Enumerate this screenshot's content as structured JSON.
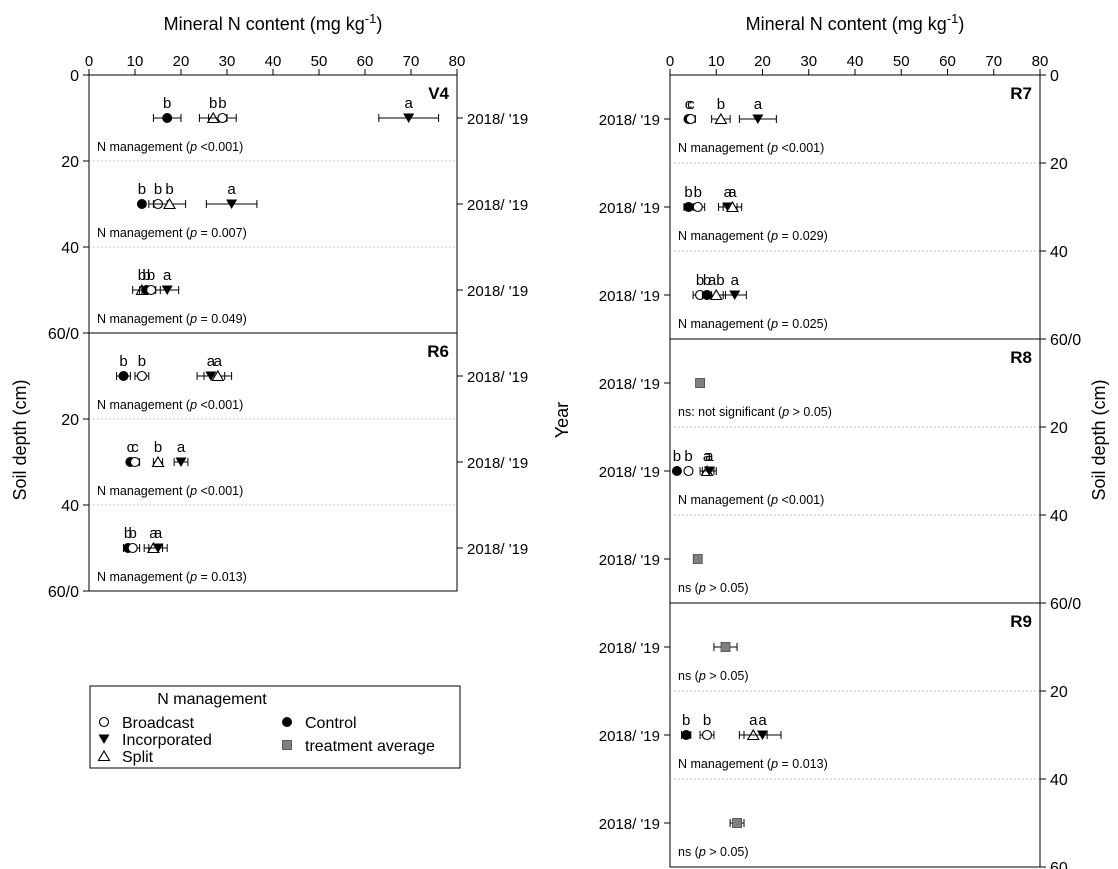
{
  "chart_data": {
    "type": "scatter",
    "x_axis_label": "Mineral N content (mg kg",
    "x_axis_label_sup": "-1",
    "x_axis_label_end": ")",
    "x_ticks": [
      "0",
      "10",
      "20",
      "30",
      "40",
      "50",
      "60",
      "70",
      "80"
    ],
    "xlim": [
      0,
      80
    ],
    "left_ylabel": "Soil depth (cm)",
    "right_ylabel": "Soil depth (cm)",
    "center_ylabel": "Year",
    "year_label": "2018/ '19",
    "left_y_ticks": [
      "0",
      "20",
      "40",
      "60/0",
      "20",
      "40",
      "60/0"
    ],
    "right_y_ticks": [
      "0",
      "20",
      "40",
      "60/0",
      "20",
      "40",
      "60/0",
      "20",
      "40",
      "60"
    ],
    "series_legend": {
      "title": "N management",
      "entries": [
        {
          "key": "broadcast",
          "label": "Broadcast",
          "marker": "open-circle"
        },
        {
          "key": "incorporated",
          "label": "Incorporated",
          "marker": "filled-triangle-down"
        },
        {
          "key": "split",
          "label": "Split",
          "marker": "open-triangle-up"
        },
        {
          "key": "control",
          "label": "Control",
          "marker": "filled-circle"
        },
        {
          "key": "average",
          "label": "treatment average",
          "marker": "grey-square"
        }
      ]
    },
    "panels": [
      {
        "id": "V4",
        "label": "V4",
        "column": "left",
        "depths": [
          {
            "depth": 10,
            "stat": "N management (",
            "p_text": " <0.001)",
            "points": [
              {
                "series": "control",
                "x": 17,
                "err": 3,
                "letter": "b"
              },
              {
                "series": "split",
                "x": 27,
                "err": 3,
                "letter": "b"
              },
              {
                "series": "broadcast",
                "x": 29,
                "err": 3,
                "letter": "b"
              },
              {
                "series": "incorporated",
                "x": 69.5,
                "err": 6.5,
                "letter": "a"
              }
            ]
          },
          {
            "depth": 30,
            "stat": "N management (",
            "p_text": " = 0.007)",
            "points": [
              {
                "series": "control",
                "x": 11.5,
                "err": 0,
                "letter": "b"
              },
              {
                "series": "broadcast",
                "x": 15,
                "err": 2,
                "letter": "b"
              },
              {
                "series": "split",
                "x": 17.5,
                "err": 3.5,
                "letter": "b"
              },
              {
                "series": "incorporated",
                "x": 31,
                "err": 5.5,
                "letter": "a"
              }
            ]
          },
          {
            "depth": 50,
            "stat": "N management (",
            "p_text": " = 0.049)",
            "points": [
              {
                "series": "split",
                "x": 11.5,
                "err": 2,
                "letter": "b"
              },
              {
                "series": "control",
                "x": 12.5,
                "err": 1.5,
                "letter": "b"
              },
              {
                "series": "broadcast",
                "x": 13.5,
                "err": 2,
                "letter": "b"
              },
              {
                "series": "incorporated",
                "x": 17,
                "err": 2.5,
                "letter": "a"
              }
            ]
          }
        ]
      },
      {
        "id": "R6",
        "label": "R6",
        "column": "left",
        "depths": [
          {
            "depth": 10,
            "stat": "N management (",
            "p_text": " <0.001)",
            "points": [
              {
                "series": "control",
                "x": 7.5,
                "err": 1.5,
                "letter": "b"
              },
              {
                "series": "broadcast",
                "x": 11.5,
                "err": 1.5,
                "letter": "b"
              },
              {
                "series": "incorporated",
                "x": 26.5,
                "err": 3,
                "letter": "a"
              },
              {
                "series": "split",
                "x": 28,
                "err": 3,
                "letter": "a"
              }
            ]
          },
          {
            "depth": 30,
            "stat": "N management (",
            "p_text": " <0.001)",
            "points": [
              {
                "series": "control",
                "x": 9,
                "err": 0,
                "letter": "c"
              },
              {
                "series": "broadcast",
                "x": 10,
                "err": 1,
                "letter": "c"
              },
              {
                "series": "split",
                "x": 15,
                "err": 1,
                "letter": "b"
              },
              {
                "series": "incorporated",
                "x": 20,
                "err": 1.5,
                "letter": "a"
              }
            ]
          },
          {
            "depth": 50,
            "stat": "N management (",
            "p_text": " = 0.013)",
            "points": [
              {
                "series": "control",
                "x": 8.5,
                "err": 1,
                "letter": "b"
              },
              {
                "series": "broadcast",
                "x": 9.5,
                "err": 1.5,
                "letter": "b"
              },
              {
                "series": "split",
                "x": 14,
                "err": 2,
                "letter": "a"
              },
              {
                "series": "incorporated",
                "x": 15,
                "err": 2,
                "letter": "a"
              }
            ]
          }
        ]
      },
      {
        "id": "R7",
        "label": "R7",
        "column": "right",
        "depths": [
          {
            "depth": 10,
            "stat": "N management (",
            "p_text": " <0.001)",
            "points": [
              {
                "series": "control",
                "x": 4,
                "err": 0.5,
                "letter": "c"
              },
              {
                "series": "broadcast",
                "x": 4.5,
                "err": 1,
                "letter": "c"
              },
              {
                "series": "split",
                "x": 11,
                "err": 2,
                "letter": "b"
              },
              {
                "series": "incorporated",
                "x": 19,
                "err": 4,
                "letter": "a"
              }
            ]
          },
          {
            "depth": 30,
            "stat": "N management (",
            "p_text": " = 0.029)",
            "points": [
              {
                "series": "control",
                "x": 4,
                "err": 1,
                "letter": "b"
              },
              {
                "series": "broadcast",
                "x": 6,
                "err": 1.5,
                "letter": "b"
              },
              {
                "series": "incorporated",
                "x": 12.5,
                "err": 2,
                "letter": "a"
              },
              {
                "series": "split",
                "x": 13.5,
                "err": 2,
                "letter": "a"
              }
            ]
          },
          {
            "depth": 50,
            "stat": "N management (",
            "p_text": " = 0.025)",
            "points": [
              {
                "series": "broadcast",
                "x": 6.5,
                "err": 1.5,
                "letter": "b"
              },
              {
                "series": "control",
                "x": 8,
                "err": 1,
                "letter": "b"
              },
              {
                "series": "split",
                "x": 10,
                "err": 2,
                "letter": "ab"
              },
              {
                "series": "incorporated",
                "x": 14,
                "err": 2.5,
                "letter": "a"
              }
            ]
          }
        ]
      },
      {
        "id": "R8",
        "label": "R8",
        "column": "right",
        "depths": [
          {
            "depth": 10,
            "stat": "ns: not significant (",
            "p_text": " > 0.05)",
            "points": [
              {
                "series": "average",
                "x": 6.5,
                "err": 0,
                "letter": ""
              }
            ]
          },
          {
            "depth": 30,
            "stat": "N management (",
            "p_text": " <0.001)",
            "points": [
              {
                "series": "control",
                "x": 1.5,
                "err": 0,
                "letter": "b"
              },
              {
                "series": "broadcast",
                "x": 4,
                "err": 0.5,
                "letter": "b"
              },
              {
                "series": "split",
                "x": 8,
                "err": 1.5,
                "letter": "a"
              },
              {
                "series": "incorporated",
                "x": 8.5,
                "err": 1.5,
                "letter": "a"
              }
            ]
          },
          {
            "depth": 50,
            "stat": "ns (",
            "p_text": " > 0.05)",
            "points": [
              {
                "series": "average",
                "x": 6,
                "err": 0,
                "letter": ""
              }
            ]
          }
        ]
      },
      {
        "id": "R9",
        "label": "R9",
        "column": "right",
        "depths": [
          {
            "depth": 10,
            "stat": "ns (",
            "p_text": " > 0.05)",
            "points": [
              {
                "series": "average",
                "x": 12,
                "err": 2.5,
                "letter": ""
              }
            ]
          },
          {
            "depth": 30,
            "stat": "N management (",
            "p_text": " = 0.013)",
            "points": [
              {
                "series": "control",
                "x": 3.5,
                "err": 1,
                "letter": "b"
              },
              {
                "series": "broadcast",
                "x": 8,
                "err": 1.5,
                "letter": "b"
              },
              {
                "series": "split",
                "x": 18,
                "err": 3,
                "letter": "a"
              },
              {
                "series": "incorporated",
                "x": 20,
                "err": 4,
                "letter": "a"
              }
            ]
          },
          {
            "depth": 50,
            "stat": "ns (",
            "p_text": " > 0.05)",
            "points": [
              {
                "series": "average",
                "x": 14.5,
                "err": 1.5,
                "letter": ""
              }
            ]
          }
        ]
      }
    ]
  }
}
